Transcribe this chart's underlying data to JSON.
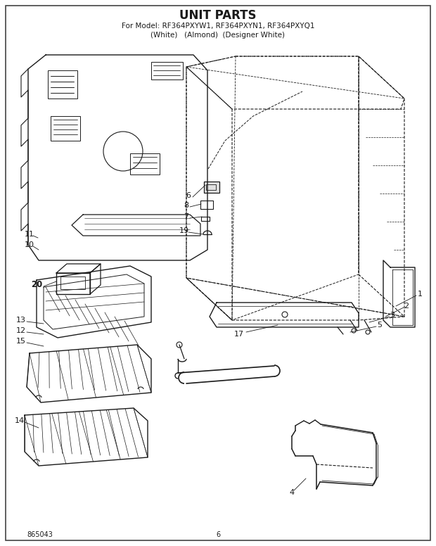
{
  "title": "UNIT PARTS",
  "subtitle": "For Model: RF364PXYW1, RF364PXYN1, RF364PXYQ1",
  "subtitle2": "(White)   (Almond)  (Designer White)",
  "part_number": "865043",
  "page_number": "6",
  "bg_color": "#ffffff",
  "line_color": "#1a1a1a",
  "title_fontsize": 12,
  "subtitle_fontsize": 7.5,
  "label_fontsize": 8,
  "footer_fontsize": 7
}
